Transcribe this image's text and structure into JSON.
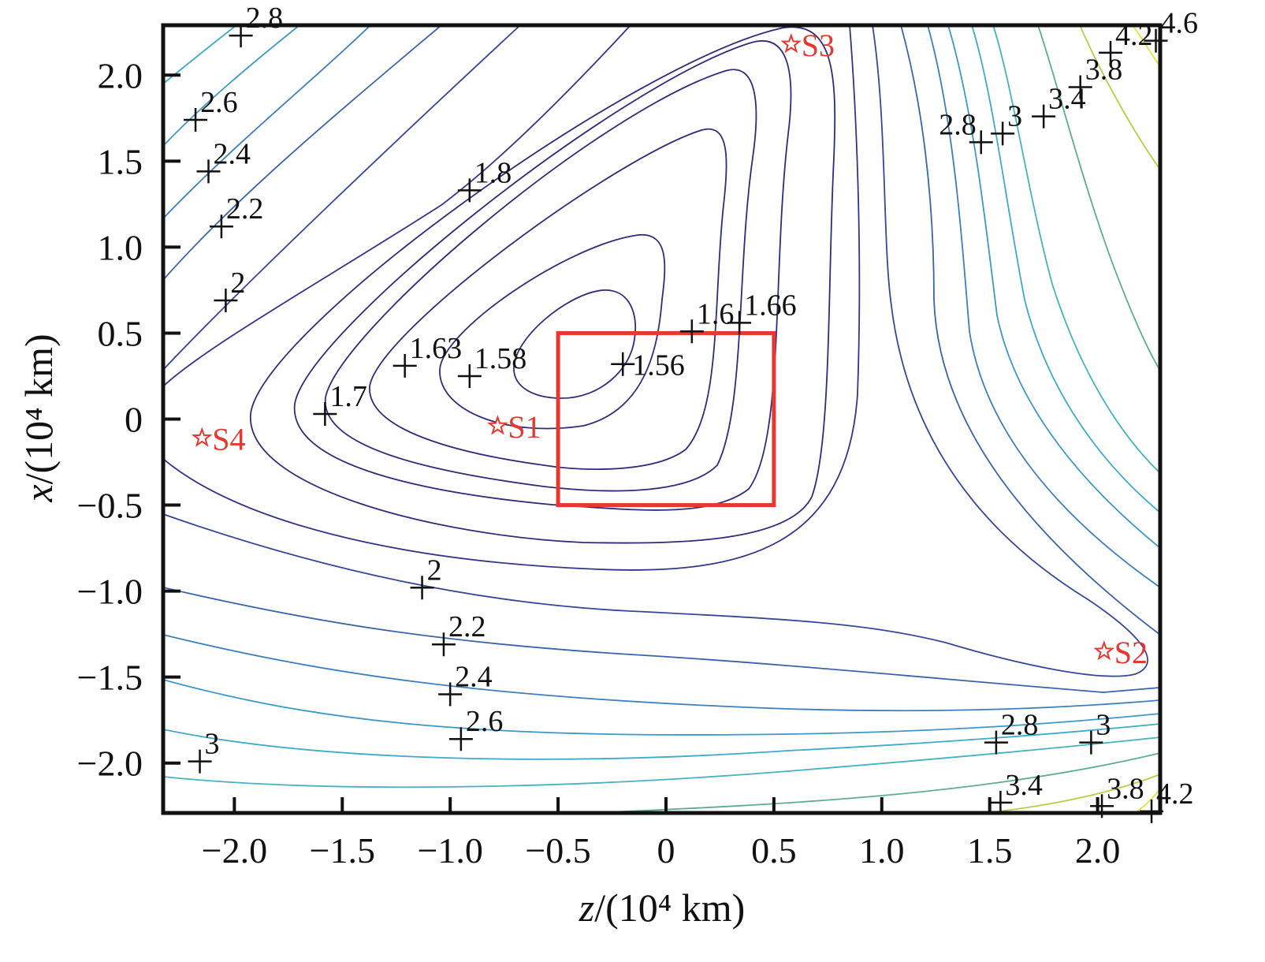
{
  "chart_data": {
    "type": "contour",
    "title": "",
    "xlabel": {
      "var": "z",
      "unit": "/(10⁴ km)"
    },
    "ylabel": {
      "var": "x",
      "unit": "/(10⁴ km)"
    },
    "xlim": [
      -2.33,
      2.29
    ],
    "ylim": [
      -2.29,
      2.29
    ],
    "xticks": [
      -2.0,
      -1.5,
      -1.0,
      -0.5,
      0,
      0.5,
      1.0,
      1.5,
      2.0
    ],
    "xtick_labels": [
      "−2.0",
      "−1.5",
      "−1.0",
      "−0.5",
      "0",
      "0.5",
      "1.0",
      "1.5",
      "2.0"
    ],
    "yticks": [
      2.0,
      1.5,
      1.0,
      0.5,
      0,
      -0.5,
      -1.0,
      -1.5,
      -2.0
    ],
    "ytick_labels": [
      "2.0",
      "1.5",
      "1.0",
      "0.5",
      "0",
      "−0.5",
      "−1.0",
      "−1.5",
      "−2.0"
    ],
    "grid": false,
    "contour_levels": [
      {
        "level": 1.56,
        "color": "#2f2c7c"
      },
      {
        "level": 1.58,
        "color": "#2f2c7c"
      },
      {
        "level": 1.6,
        "color": "#2f2c7c"
      },
      {
        "level": 1.63,
        "color": "#2f2c7c"
      },
      {
        "level": 1.66,
        "color": "#2f2c7c"
      },
      {
        "level": 1.7,
        "color": "#2f2c7c"
      },
      {
        "level": 1.8,
        "color": "#34348a"
      },
      {
        "level": 2.0,
        "color": "#36479a"
      },
      {
        "level": 2.2,
        "color": "#3a64aa"
      },
      {
        "level": 2.4,
        "color": "#3c7fbc"
      },
      {
        "level": 2.6,
        "color": "#3d98c8"
      },
      {
        "level": 2.8,
        "color": "#3eaacc"
      },
      {
        "level": 3.0,
        "color": "#45b3c0"
      },
      {
        "level": 3.4,
        "color": "#5fae8a"
      },
      {
        "level": 3.8,
        "color": "#b8cf48"
      },
      {
        "level": 4.2,
        "color": "#e2e43c"
      },
      {
        "level": 4.6,
        "color": "#eeea3a"
      }
    ],
    "labels": [
      {
        "text": "2.8",
        "x": -1.97,
        "y": 2.23
      },
      {
        "text": "2.6",
        "x": -2.18,
        "y": 1.74
      },
      {
        "text": "2.4",
        "x": -2.12,
        "y": 1.44
      },
      {
        "text": "2.2",
        "x": -2.06,
        "y": 1.12
      },
      {
        "text": "2",
        "x": -2.04,
        "y": 0.69
      },
      {
        "text": "1.8",
        "x": -0.91,
        "y": 1.33
      },
      {
        "text": "1.7",
        "x": -1.58,
        "y": 0.03
      },
      {
        "text": "1.63",
        "x": -1.21,
        "y": 0.31
      },
      {
        "text": "1.58",
        "x": -0.91,
        "y": 0.25
      },
      {
        "text": "1.56",
        "x": -0.2,
        "y": 0.32
      },
      {
        "text": "1.6",
        "x": 0.12,
        "y": 0.51
      },
      {
        "text": "1.66",
        "x": 0.34,
        "y": 0.56
      },
      {
        "text": "2",
        "x": -1.13,
        "y": -0.98
      },
      {
        "text": "2.2",
        "x": -1.03,
        "y": -1.31
      },
      {
        "text": "2.4",
        "x": -1.0,
        "y": -1.6
      },
      {
        "text": "2.6",
        "x": -0.95,
        "y": -1.86
      },
      {
        "text": "3",
        "x": -2.16,
        "y": -1.99
      },
      {
        "text": "2.8",
        "x": 1.46,
        "y": 1.61
      },
      {
        "text": "3",
        "x": 1.56,
        "y": 1.66
      },
      {
        "text": "3.4",
        "x": 1.75,
        "y": 1.76
      },
      {
        "text": "3.8",
        "x": 1.92,
        "y": 1.93
      },
      {
        "text": "4.2",
        "x": 2.06,
        "y": 2.13
      },
      {
        "text": "4.6",
        "x": 2.27,
        "y": 2.2
      },
      {
        "text": "2.8",
        "x": 1.53,
        "y": -1.88
      },
      {
        "text": "3",
        "x": 1.97,
        "y": -1.88
      },
      {
        "text": "3.4",
        "x": 1.55,
        "y": -2.23
      },
      {
        "text": "3.8",
        "x": 2.02,
        "y": -2.25
      },
      {
        "text": "4.2",
        "x": 2.25,
        "y": -2.28
      }
    ],
    "points": [
      {
        "name": "S1",
        "x": -0.78,
        "y": -0.04
      },
      {
        "name": "S2",
        "x": 2.03,
        "y": -1.35
      },
      {
        "name": "S3",
        "x": 0.58,
        "y": 2.18
      },
      {
        "name": "S4",
        "x": -2.15,
        "y": -0.11
      }
    ],
    "point_color": "#e8372f",
    "region": {
      "x": [
        -0.5,
        0.5
      ],
      "y": [
        -0.5,
        0.5
      ],
      "color": "#e8372f"
    }
  }
}
